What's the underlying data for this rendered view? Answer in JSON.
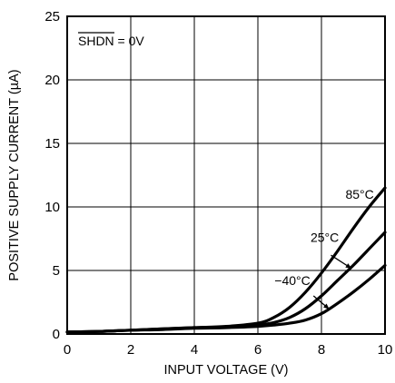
{
  "chart_data": {
    "type": "line",
    "title": "",
    "xlabel": "INPUT VOLTAGE (V)",
    "ylabel": "POSITIVE SUPPLY CURRENT (µA)",
    "xlim": [
      0,
      10
    ],
    "ylim": [
      0,
      25
    ],
    "xticks": [
      "0",
      "2",
      "4",
      "6",
      "8",
      "10"
    ],
    "yticks": [
      "0",
      "5",
      "10",
      "15",
      "20",
      "25"
    ],
    "grid": true,
    "legend": "none",
    "annotation": "SHDN = 0V",
    "series": [
      {
        "name": "85°C",
        "x": [
          0,
          1,
          2,
          3,
          4,
          5,
          6,
          6.5,
          7,
          7.5,
          8,
          8.5,
          9,
          9.5,
          10
        ],
        "y": [
          0.15,
          0.2,
          0.3,
          0.4,
          0.5,
          0.6,
          0.85,
          1.3,
          2.1,
          3.3,
          4.8,
          6.5,
          8.3,
          10.0,
          11.5
        ]
      },
      {
        "name": "25°C",
        "x": [
          0,
          1,
          2,
          3,
          4,
          5,
          6,
          6.5,
          7,
          7.5,
          8,
          8.5,
          9,
          9.5,
          10
        ],
        "y": [
          0.15,
          0.2,
          0.3,
          0.4,
          0.5,
          0.55,
          0.7,
          0.9,
          1.3,
          2.0,
          3.0,
          4.2,
          5.4,
          6.7,
          8.0
        ]
      },
      {
        "name": "−40°C",
        "x": [
          0,
          1,
          2,
          3,
          4,
          5,
          6,
          6.5,
          7,
          7.5,
          8,
          8.5,
          9,
          9.5,
          10
        ],
        "y": [
          0.15,
          0.2,
          0.3,
          0.35,
          0.45,
          0.5,
          0.6,
          0.7,
          0.85,
          1.1,
          1.6,
          2.4,
          3.3,
          4.3,
          5.4
        ]
      }
    ]
  }
}
